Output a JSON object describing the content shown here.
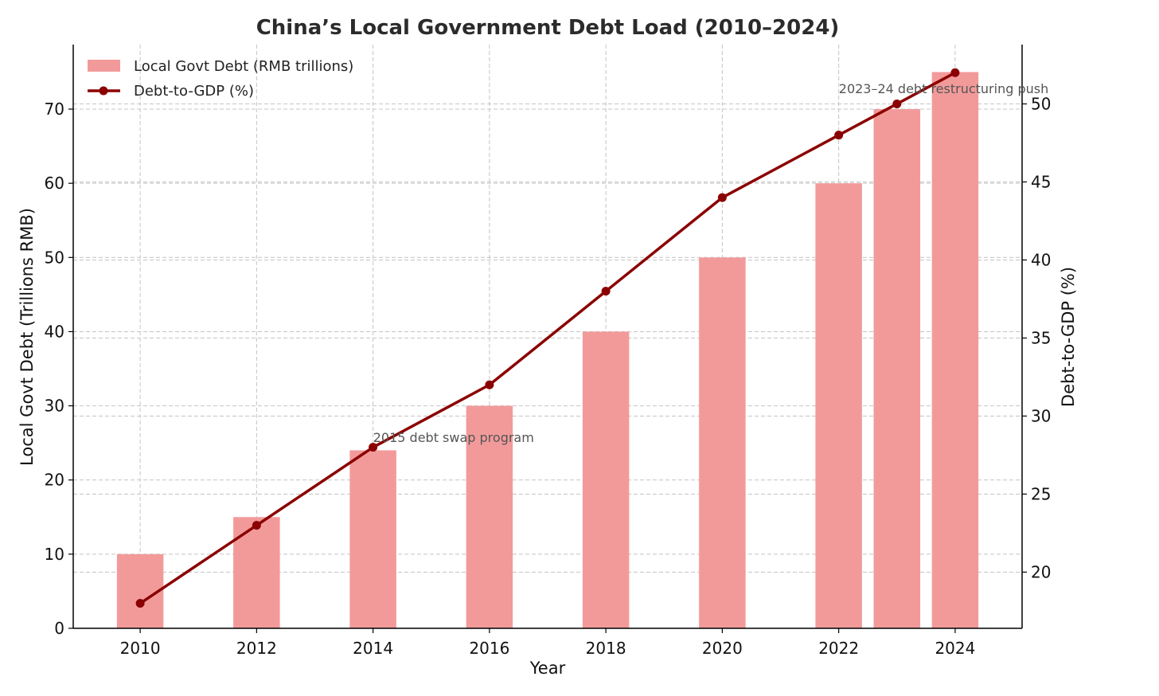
{
  "chart_data": {
    "type": "bar",
    "title": "China’s Local Government Debt Load (2010–2024)",
    "xlabel": "Year",
    "ylabel_left": "Local Govt Debt (Trillions RMB)",
    "ylabel_right": "Debt-to-GDP (%)",
    "x": [
      2010,
      2012,
      2014,
      2016,
      2018,
      2020,
      2022,
      2023,
      2024
    ],
    "x_ticks": [
      "2010",
      "2012",
      "2014",
      "2016",
      "2018",
      "2020",
      "2022",
      "2024"
    ],
    "xlim": [
      2008.85,
      2025.15
    ],
    "ylim_left": [
      0,
      78.7
    ],
    "ylim_right": [
      16.4,
      53.8
    ],
    "y_ticks_left": [
      "0",
      "10",
      "20",
      "30",
      "40",
      "50",
      "60",
      "70"
    ],
    "y_ticks_right": [
      "20",
      "25",
      "30",
      "35",
      "40",
      "45",
      "50"
    ],
    "grid": true,
    "legend_position": "top-left",
    "series": [
      {
        "name": "Local Govt Debt (RMB trillions)",
        "type": "bar",
        "axis": "left",
        "color": "#f29a9a",
        "values": [
          10,
          15,
          24,
          30,
          40,
          50,
          60,
          70,
          75
        ]
      },
      {
        "name": "Debt-to-GDP (%)",
        "type": "line",
        "axis": "right",
        "color": "#8b0000",
        "values": [
          18,
          23,
          28,
          32,
          38,
          44,
          48,
          50,
          52
        ]
      }
    ],
    "annotations": [
      {
        "text": "2015 debt swap program",
        "x": 2015,
        "y_left": 26
      },
      {
        "text": "2023–24 debt restructuring push",
        "x": 2023,
        "y_left": 73
      }
    ]
  }
}
